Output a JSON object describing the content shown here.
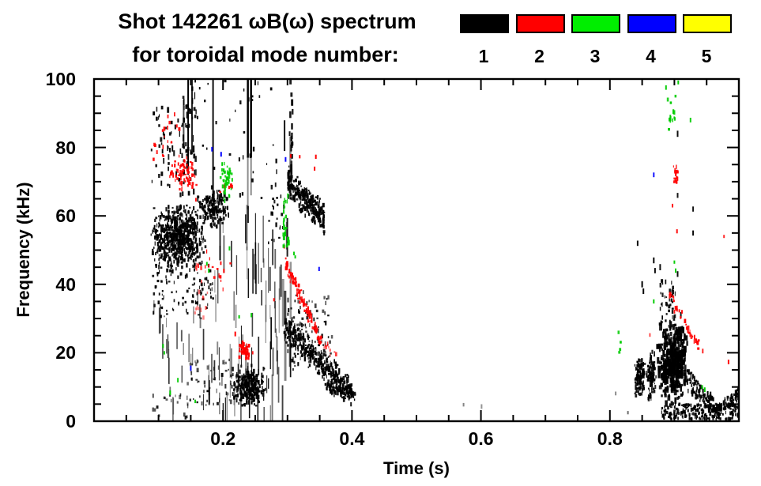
{
  "header": {
    "title_line1": "Shot 142261 ωB(ω) spectrum",
    "title_line2": "for toroidal mode number:"
  },
  "chart_data": {
    "type": "scatter",
    "title": "Shot 142261 ωB(ω) spectrum",
    "subtitle": "for toroidal mode number:",
    "xlabel": "Time (s)",
    "ylabel": "Frequency (kHz)",
    "xlim": [
      0,
      1.0
    ],
    "ylim": [
      0,
      100
    ],
    "x_major_ticks": [
      0.2,
      0.4,
      0.6,
      0.8
    ],
    "x_minor_step": 0.05,
    "y_major_ticks": [
      0,
      20,
      40,
      60,
      80,
      100
    ],
    "y_minor_step": 5,
    "grid": false,
    "legend_position": "top-right",
    "legend": [
      {
        "label": "1",
        "color": "#000000"
      },
      {
        "label": "2",
        "color": "#FF0000"
      },
      {
        "label": "3",
        "color": "#00EE00"
      },
      {
        "label": "4",
        "color": "#0000FF"
      },
      {
        "label": "5",
        "color": "#FFFF00"
      }
    ],
    "seed": 1426,
    "series": [
      {
        "mode": 1,
        "name": "n=1",
        "color": "#000000",
        "clusters": [
          {
            "shape": "blob",
            "t": [
              0.086,
              0.175
            ],
            "f": [
              44,
              64
            ],
            "n": 700
          },
          {
            "shape": "blob",
            "t": [
              0.158,
              0.212
            ],
            "f": [
              56,
              68
            ],
            "n": 170
          },
          {
            "shape": "scatter",
            "t": [
              0.09,
              0.185
            ],
            "f": [
              30,
              46
            ],
            "n": 110,
            "h": [
              2,
              5
            ]
          },
          {
            "shape": "scatter",
            "t": [
              0.088,
              0.16
            ],
            "f": [
              66,
              92
            ],
            "n": 65,
            "h": [
              3,
              8
            ]
          },
          {
            "shape": "scatter",
            "t": [
              0.135,
              0.158
            ],
            "f": [
              70,
              100
            ],
            "n": 28,
            "h": [
              3,
              9
            ]
          },
          {
            "shape": "columns",
            "items": [
              [
                0.146,
                72,
                100,
                2,
                1
              ],
              [
                0.152,
                78,
                100,
                2,
                0.85
              ],
              [
                0.139,
                80,
                94,
                2,
                0.7
              ],
              [
                0.1845,
                60,
                100,
                2,
                0.95
              ],
              [
                0.2385,
                77,
                100,
                2.5,
                1
              ],
              [
                0.2435,
                77,
                100,
                2.5,
                1
              ],
              [
                0.2385,
                62,
                77,
                2,
                0.45
              ],
              [
                0.2435,
                66,
                77,
                2,
                0.45
              ]
            ]
          },
          {
            "shape": "scatter",
            "t": [
              0.303,
              0.308
            ],
            "f": [
              73,
              100
            ],
            "n": 16,
            "w": [
              2,
              3
            ],
            "h": [
              4,
              9
            ]
          },
          {
            "shape": "scatter",
            "t": [
              0.16,
              0.285
            ],
            "f": [
              64,
              100
            ],
            "n": 40,
            "h": [
              2,
              6
            ]
          },
          {
            "shape": "scatter",
            "t": [
              0.265,
              0.298
            ],
            "f": [
              52,
              66
            ],
            "n": 22
          },
          {
            "shape": "streaks",
            "t": [
              0.09,
              0.195
            ],
            "f": [
              6,
              45
            ],
            "n": 38,
            "len": [
              8,
              45
            ],
            "w": [
              1,
              2
            ],
            "op": [
              0.3,
              0.85
            ]
          },
          {
            "shape": "streaks",
            "t": [
              0.195,
              0.29
            ],
            "f": [
              4,
              66
            ],
            "n": 70,
            "len": [
              10,
              60
            ],
            "w": [
              1,
              2
            ],
            "op": [
              0.35,
              0.95
            ]
          },
          {
            "shape": "blob",
            "t": [
              0.213,
              0.268
            ],
            "f": [
              4,
              17
            ],
            "n": 290
          },
          {
            "shape": "scatter",
            "t": [
              0.145,
              0.215
            ],
            "f": [
              4,
              18
            ],
            "n": 55,
            "op": [
              0.5,
              1
            ]
          },
          {
            "shape": "scatter",
            "t": [
              0.09,
              0.145
            ],
            "f": [
              1,
              8
            ],
            "n": 18,
            "op": [
              0.5,
              0.95
            ]
          },
          {
            "shape": "streaks",
            "t": [
              0.292,
              0.312
            ],
            "f": [
              8,
              95
            ],
            "n": 12,
            "len": [
              15,
              80
            ],
            "op": [
              0.4,
              0.95
            ]
          },
          {
            "shape": "track",
            "t": [
              0.3,
              0.357
            ],
            "f": [
              70,
              59
            ],
            "spread": 5.5,
            "n": 290
          },
          {
            "shape": "track",
            "t": [
              0.295,
              0.4
            ],
            "f": [
              28,
              8
            ],
            "spread": 5,
            "n": 400
          },
          {
            "shape": "scatter",
            "t": [
              0.3,
              0.37
            ],
            "f": [
              15,
              38
            ],
            "n": 110,
            "op": [
              0.6,
              1
            ]
          },
          {
            "shape": "track",
            "t": [
              0.355,
              0.405
            ],
            "f": [
              10,
              8
            ],
            "spread": 2.5,
            "n": 80
          },
          {
            "shape": "points",
            "pts": [
              [
                0.809,
                8.1
              ],
              [
                0.828,
                2.5
              ],
              [
                0.573,
                4.8
              ],
              [
                0.601,
                4.3
              ]
            ],
            "op": [
              0.35,
              0.6
            ]
          },
          {
            "shape": "blob",
            "t": [
              0.837,
              0.855
            ],
            "f": [
              7,
              19
            ],
            "n": 120
          },
          {
            "shape": "blob",
            "t": [
              0.856,
              0.872
            ],
            "f": [
              6,
              22
            ],
            "n": 105
          },
          {
            "shape": "blob",
            "t": [
              0.873,
              0.922
            ],
            "f": [
              4,
              30
            ],
            "n": 360,
            "w": [
              2,
              4
            ],
            "h": [
              3,
              9
            ]
          },
          {
            "shape": "scatter",
            "t": [
              0.878,
              0.902
            ],
            "f": [
              28,
              41
            ],
            "n": 42
          },
          {
            "shape": "track",
            "t": [
              0.92,
              0.968
            ],
            "f": [
              12,
              3
            ],
            "spread": 3.5,
            "n": 120
          },
          {
            "shape": "scatter",
            "t": [
              0.88,
              1.0
            ],
            "f": [
              0.5,
              5
            ],
            "n": 230,
            "h": [
              2,
              5
            ]
          },
          {
            "shape": "track",
            "t": [
              0.968,
              0.999
            ],
            "f": [
              3,
              8
            ],
            "spread": 2,
            "n": 65
          },
          {
            "shape": "points",
            "pts": [
              [
                0.905,
                84
              ],
              [
                0.905,
                66
              ],
              [
                0.929,
                62
              ],
              [
                0.929,
                55
              ],
              [
                0.843,
                52
              ],
              [
                0.85,
                40
              ],
              [
                0.852,
                38
              ],
              [
                0.868,
                47
              ],
              [
                0.87,
                44
              ],
              [
                0.878,
                45
              ],
              [
                0.905,
                43
              ],
              [
                0.91,
                31
              ]
            ],
            "size": [
              2,
              6
            ]
          }
        ]
      },
      {
        "mode": 2,
        "name": "n=2",
        "color": "#FF0000",
        "clusters": [
          {
            "shape": "blob",
            "t": [
              0.113,
              0.162
            ],
            "f": [
              67,
              78
            ],
            "n": 75,
            "h": [
              2,
              5
            ]
          },
          {
            "shape": "scatter",
            "t": [
              0.105,
              0.135
            ],
            "f": [
              80,
              90
            ],
            "n": 13
          },
          {
            "shape": "scatter",
            "t": [
              0.09,
              0.115
            ],
            "f": [
              76,
              82
            ],
            "n": 8
          },
          {
            "shape": "scatter",
            "t": [
              0.155,
              0.178
            ],
            "f": [
              30,
              46
            ],
            "n": 20,
            "op": [
              0.45,
              0.8
            ]
          },
          {
            "shape": "scatter",
            "t": [
              0.17,
              0.212
            ],
            "f": [
              38,
              50
            ],
            "n": 12
          },
          {
            "shape": "scatter",
            "t": [
              0.19,
              0.215
            ],
            "f": [
              66,
              72
            ],
            "n": 9
          },
          {
            "shape": "blob",
            "t": [
              0.224,
              0.242
            ],
            "f": [
              18,
              23
            ],
            "n": 48
          },
          {
            "shape": "track",
            "t": [
              0.297,
              0.353
            ],
            "f": [
              46,
              23
            ],
            "spread": 2.5,
            "n": 105
          },
          {
            "shape": "track",
            "t": [
              0.353,
              0.376
            ],
            "f": [
              23,
              19
            ],
            "spread": 1.5,
            "n": 10,
            "op": [
              0.5,
              0.8
            ]
          },
          {
            "shape": "points",
            "pts": [
              [
                0.305,
                77.5
              ],
              [
                0.319,
                77.3
              ],
              [
                0.342,
                73.8
              ],
              [
                0.344,
                77.3
              ],
              [
                0.295,
                51
              ],
              [
                0.279,
                35.5
              ],
              [
                0.158,
                64.7
              ],
              [
                0.219,
                25.5
              ],
              [
                0.246,
                20
              ]
            ]
          },
          {
            "shape": "blob",
            "t": [
              0.896,
              0.906
            ],
            "f": [
              68,
              76
            ],
            "n": 15
          },
          {
            "shape": "track",
            "t": [
              0.892,
              0.938
            ],
            "f": [
              37,
              22
            ],
            "spread": 1.8,
            "n": 38
          },
          {
            "shape": "points",
            "pts": [
              [
                0.904,
                55.5
              ],
              [
                0.977,
                54
              ],
              [
                0.984,
                17.3
              ],
              [
                0.862,
                25.2
              ],
              [
                0.9,
                32
              ],
              [
                0.944,
                20.5
              ],
              [
                0.897,
                63
              ]
            ],
            "op": [
              0.6,
              1
            ]
          }
        ]
      },
      {
        "mode": 3,
        "name": "n=3",
        "color": "#00CC00",
        "clusters": [
          {
            "shape": "blob",
            "t": [
              0.193,
              0.216
            ],
            "f": [
              63,
              78
            ],
            "n": 46
          },
          {
            "shape": "scatter",
            "t": [
              0.293,
              0.303
            ],
            "f": [
              51,
              66
            ],
            "n": 24,
            "h": [
              3,
              7
            ]
          },
          {
            "shape": "points",
            "pts": [
              [
                0.31,
                49
              ],
              [
                0.312,
                48
              ],
              [
                0.175,
                46
              ],
              [
                0.178,
                44
              ],
              [
                0.21,
                50.5
              ],
              [
                0.225,
                30.5
              ],
              [
                0.244,
                31
              ],
              [
                0.118,
                8.3
              ],
              [
                0.157,
                5.8
              ],
              [
                0.107,
                22
              ],
              [
                0.109,
                20
              ],
              [
                0.13,
                12
              ]
            ]
          },
          {
            "shape": "scatter",
            "t": [
              0.888,
              0.904
            ],
            "f": [
              84,
              97
            ],
            "n": 13,
            "h": [
              3,
              8
            ]
          },
          {
            "shape": "scatter",
            "t": [
              0.813,
              0.818
            ],
            "f": [
              20,
              26
            ],
            "n": 5
          },
          {
            "shape": "points",
            "pts": [
              [
                0.887,
                97.5
              ],
              [
                0.906,
                99
              ],
              [
                0.925,
                88
              ],
              [
                0.9,
                46.5
              ],
              [
                0.902,
                44
              ],
              [
                0.947,
                9.2
              ],
              [
                0.943,
                10
              ],
              [
                0.868,
                35
              ]
            ]
          }
        ]
      },
      {
        "mode": 4,
        "name": "n=4",
        "color": "#0000FF",
        "clusters": [
          {
            "shape": "points",
            "pts": [
              [
                0.183,
                79.5
              ],
              [
                0.197,
                78
              ],
              [
                0.297,
                76.5
              ],
              [
                0.349,
                44.5
              ],
              [
                0.868,
                72
              ],
              [
                0.15,
                15.5
              ]
            ],
            "size": [
              2,
              5
            ]
          }
        ]
      },
      {
        "mode": 5,
        "name": "n=5",
        "color": "#FFFF00",
        "clusters": []
      }
    ]
  }
}
